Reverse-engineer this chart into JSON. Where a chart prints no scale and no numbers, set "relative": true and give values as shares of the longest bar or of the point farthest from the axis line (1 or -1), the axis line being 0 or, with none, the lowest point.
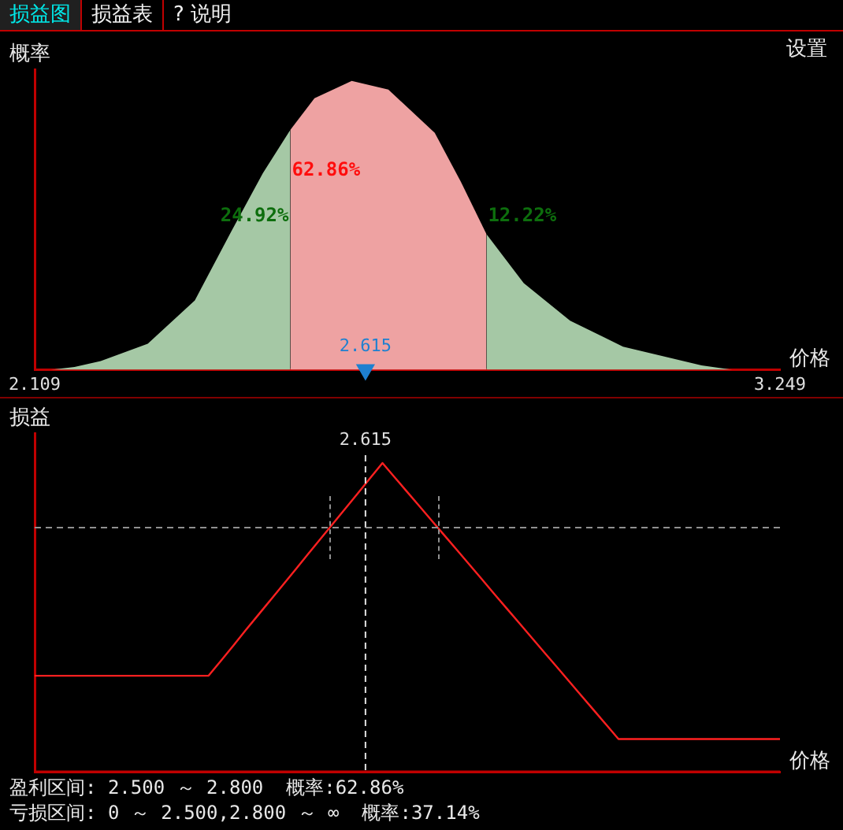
{
  "chart_data": [
    {
      "type": "area",
      "relative": true,
      "ylabel": "概率",
      "xlabel": "价格",
      "xlim": [
        2.109,
        3.249
      ],
      "xticks": [
        2.109,
        3.249
      ],
      "grid": false,
      "legend": false,
      "annotations": [
        "损益图",
        "损益表",
        "? 说明",
        "设置",
        "24.92%",
        "62.86%",
        "12.22%",
        {
          "text": "2.615",
          "x": 2.615,
          "y": 0
        }
      ],
      "series": [
        {
          "color": "#a5c8a5",
          "x": [
            2.134,
            2.17,
            2.21,
            2.282,
            2.354,
            2.41,
            2.458,
            2.5
          ],
          "values": [
            0,
            0.01,
            0.03,
            0.09,
            0.24,
            0.48,
            0.68,
            0.83
          ]
        },
        {
          "color": "#eea2a2",
          "x": [
            2.5,
            2.537,
            2.594,
            2.65,
            2.721,
            2.761,
            2.8
          ],
          "values": [
            0.83,
            0.94,
            1,
            0.97,
            0.82,
            0.65,
            0.47
          ]
        },
        {
          "color": "#a5c8a5",
          "x": [
            2.8,
            2.857,
            2.928,
            3.009,
            3.129,
            3.176
          ],
          "values": [
            0.47,
            0.3,
            0.17,
            0.08,
            0.015,
            0
          ]
        },
        {
          "type": "scatter",
          "marker": "triangle",
          "color": "#1e80d0",
          "x": [
            2.615
          ],
          "values": [
            0
          ]
        }
      ]
    },
    {
      "type": "line",
      "relative": true,
      "ylabel": "损益",
      "xlabel": "价格",
      "grid": false,
      "legend": false,
      "categories": [
        null,
        null,
        null,
        null,
        null,
        null,
        null,
        null,
        null,
        null,
        null,
        null,
        null,
        null,
        null,
        null,
        null,
        null,
        null,
        null,
        null,
        null,
        null,
        null,
        null,
        null,
        null,
        null,
        null,
        null,
        null,
        null,
        null,
        null,
        null,
        null,
        null,
        null,
        null,
        null,
        null,
        null,
        null,
        null,
        null,
        null,
        null,
        null,
        null,
        null,
        null,
        null,
        null,
        null,
        null,
        null,
        null,
        null,
        null,
        null,
        null
      ],
      "annotations": [
        "2.615",
        "盈利区间: 2.500 ～ 2.800  概率:62.86%",
        "亏损区间: 0 ～ 2.500,2.800 ～ ∞  概率:37.14%"
      ],
      "ref_lines": [
        {
          "axis": "y",
          "value": 0.791,
          "color": "#909090",
          "line_style": "dashed"
        }
      ],
      "series": [
        {
          "color": "#ff2020",
          "values": [
            0.311,
            0.311,
            0.311,
            0.311,
            0.311,
            0.311,
            0.311,
            0.311,
            0.311,
            0.311,
            0.311,
            0.311,
            0.311,
            0.311,
            0.311,
            0.36,
            0.409,
            0.459,
            0.508,
            0.557,
            0.606,
            0.655,
            0.705,
            0.754,
            0.803,
            0.852,
            0.901,
            0.951,
            1,
            0.953,
            0.906,
            0.859,
            0.812,
            0.765,
            0.718,
            0.671,
            0.624,
            0.576,
            0.529,
            0.482,
            0.435,
            0.388,
            0.341,
            0.294,
            0.247,
            0.2,
            0.153,
            0.106,
            0.106,
            0.106,
            0.106,
            0.106,
            0.106,
            0.106,
            0.106,
            0.106,
            0.106,
            0.106,
            0.106,
            0.106,
            0.106
          ]
        }
      ]
    }
  ]
}
